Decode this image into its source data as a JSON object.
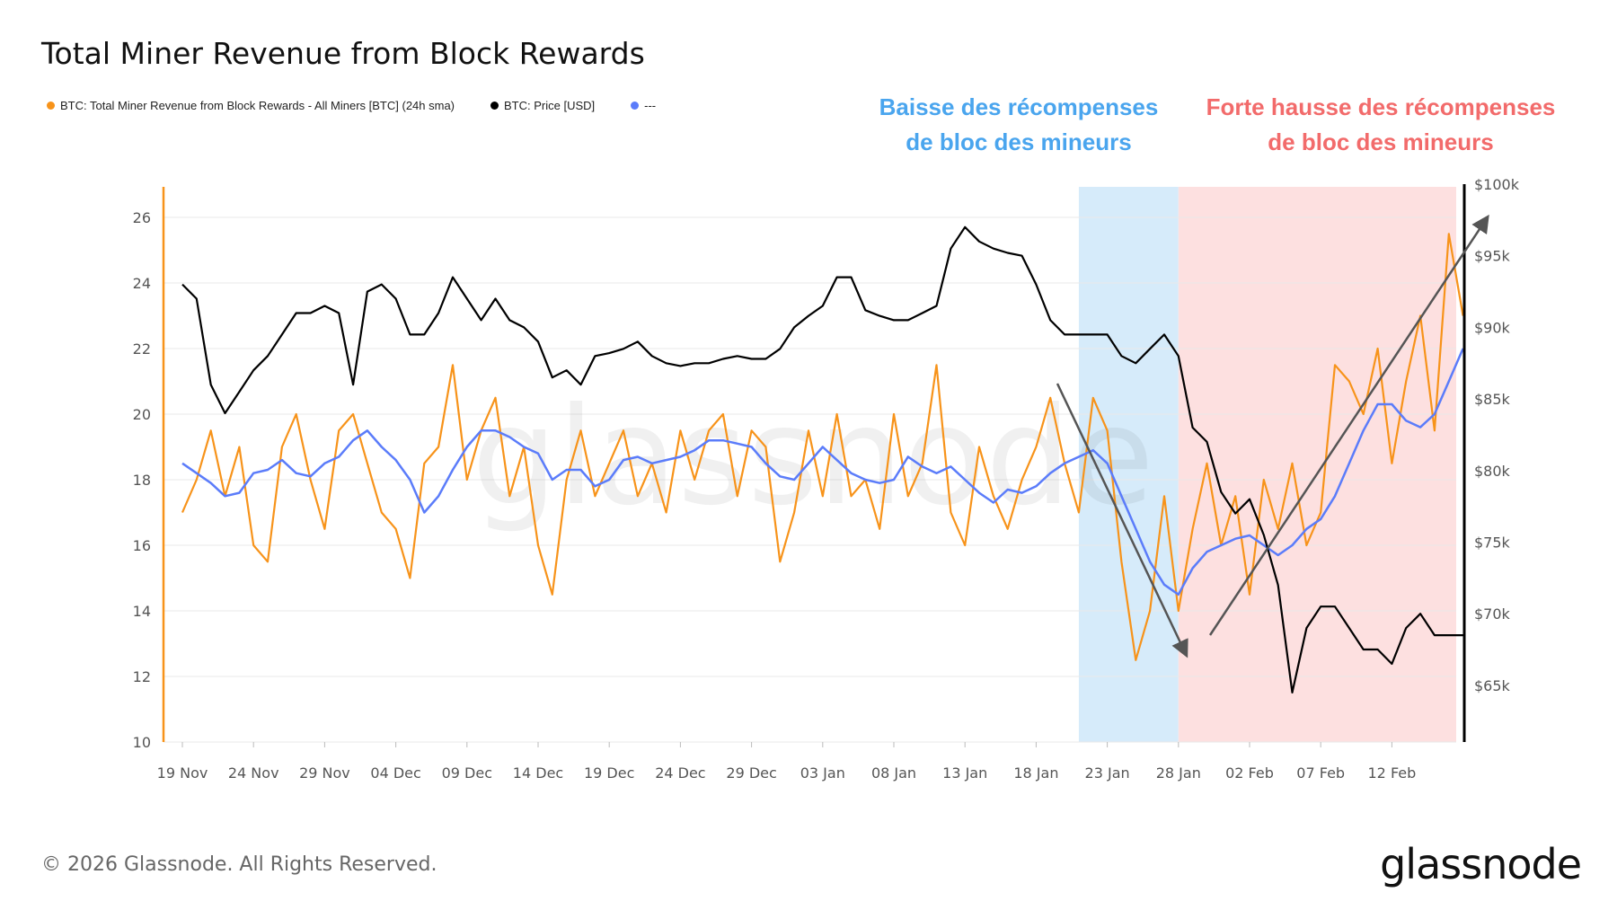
{
  "chart_data": {
    "type": "line",
    "title": "Total Miner Revenue from Block Rewards",
    "legend": [
      {
        "label": "BTC: Total Miner Revenue from Block Rewards - All Miners [BTC] (24h sma)",
        "color": "#f7931a"
      },
      {
        "label": "BTC: Price [USD]",
        "color": "#000000"
      },
      {
        "label": "---",
        "color": "#5b7cfa"
      }
    ],
    "legend_placement": "top-left",
    "x_start": "19 Nov",
    "x_end": "17 Feb",
    "x_tick_labels": [
      "19 Nov",
      "24 Nov",
      "29 Nov",
      "04 Dec",
      "09 Dec",
      "14 Dec",
      "19 Dec",
      "24 Dec",
      "29 Dec",
      "03 Jan",
      "08 Jan",
      "13 Jan",
      "18 Jan",
      "23 Jan",
      "28 Jan",
      "02 Feb",
      "07 Feb",
      "12 Feb"
    ],
    "y_left_ticks": [
      "10",
      "12",
      "14",
      "16",
      "18",
      "20",
      "22",
      "24",
      "26"
    ],
    "y_left_range": [
      10,
      27
    ],
    "y_right_ticks": [
      "$65k",
      "$70k",
      "$75k",
      "$80k",
      "$85k",
      "$90k",
      "$95k",
      "$100k"
    ],
    "y_right_range": [
      61,
      100
    ],
    "grid": true,
    "series": [
      {
        "name": "BTC: Total Miner Revenue from Block Rewards - All Miners [BTC] (24h sma)",
        "axis": "left",
        "color": "#f7931a",
        "values": [
          17,
          18,
          19.5,
          17.5,
          19,
          16,
          15.5,
          19,
          20,
          18,
          16.5,
          19.5,
          20,
          18.5,
          17,
          16.5,
          15,
          18.5,
          19,
          21.5,
          18,
          19.5,
          20.5,
          17.5,
          19,
          16,
          14.5,
          18,
          19.5,
          17.5,
          18.5,
          19.5,
          17.5,
          18.5,
          17,
          19.5,
          18,
          19.5,
          20,
          17.5,
          19.5,
          19,
          15.5,
          17,
          19.5,
          17.5,
          20,
          17.5,
          18,
          16.5,
          20,
          17.5,
          18.5,
          21.5,
          17,
          16,
          19,
          17.5,
          16.5,
          18,
          19,
          20.5,
          18.5,
          17,
          20.5,
          19.5,
          15.5,
          12.5,
          14,
          17.5,
          14,
          16.5,
          18.5,
          16,
          17.5,
          14.5,
          18,
          16.5,
          18.5,
          16,
          17,
          21.5,
          21,
          20,
          22,
          18.5,
          21,
          23,
          19.5,
          25.5,
          23
        ]
      },
      {
        "name": "BTC: Price [USD]",
        "axis": "right",
        "color": "#000000",
        "unit": "k USD",
        "values": [
          93,
          92,
          86,
          84,
          85.5,
          87,
          88,
          89.5,
          91,
          91,
          91.5,
          91,
          86,
          92.5,
          93,
          92,
          89.5,
          89.5,
          91,
          93.5,
          92,
          90.5,
          92,
          90.5,
          90,
          89,
          86.5,
          87,
          86,
          88,
          88.2,
          88.5,
          89,
          88,
          87.5,
          87.3,
          87.5,
          87.5,
          87.8,
          88,
          87.8,
          87.8,
          88.5,
          90,
          90.8,
          91.5,
          93.5,
          93.5,
          91.2,
          90.8,
          90.5,
          90.5,
          91,
          91.5,
          95.5,
          97,
          96,
          95.5,
          95.2,
          95,
          93,
          90.5,
          89.5,
          89.5,
          89.5,
          89.5,
          88,
          87.5,
          88.5,
          89.5,
          88,
          83,
          82,
          78.5,
          77,
          78,
          75.5,
          72,
          64.5,
          69,
          70.5,
          70.5,
          69,
          67.5,
          67.5,
          66.5,
          69,
          70,
          68.5,
          68.5,
          68.5
        ]
      },
      {
        "name": "---",
        "axis": "left",
        "color": "#5b7cfa",
        "values": [
          18.5,
          18.2,
          17.9,
          17.5,
          17.6,
          18.2,
          18.3,
          18.6,
          18.2,
          18.1,
          18.5,
          18.7,
          19.2,
          19.5,
          19,
          18.6,
          18,
          17,
          17.5,
          18.3,
          19,
          19.5,
          19.5,
          19.3,
          19,
          18.8,
          18,
          18.3,
          18.3,
          17.8,
          18,
          18.6,
          18.7,
          18.5,
          18.6,
          18.7,
          18.9,
          19.2,
          19.2,
          19.1,
          19,
          18.5,
          18.1,
          18,
          18.5,
          19,
          18.6,
          18.2,
          18,
          17.9,
          18,
          18.7,
          18.4,
          18.2,
          18.4,
          18,
          17.6,
          17.3,
          17.7,
          17.6,
          17.8,
          18.2,
          18.5,
          18.7,
          18.9,
          18.5,
          17.5,
          16.5,
          15.5,
          14.8,
          14.5,
          15.3,
          15.8,
          16,
          16.2,
          16.3,
          16,
          15.7,
          16,
          16.5,
          16.8,
          17.5,
          18.5,
          19.5,
          20.3,
          20.3,
          19.8,
          19.6,
          20,
          21,
          22
        ]
      }
    ],
    "highlight_bands": [
      {
        "from": "21 Jan",
        "to": "28 Jan",
        "color": "#d6ebfa"
      },
      {
        "from": "28 Jan",
        "to": "17 Feb",
        "color": "#fde0e0"
      }
    ],
    "annotations": {
      "decline": {
        "line1": "Baisse des récompenses",
        "line2": "de bloc des mineurs",
        "color": "#4aa5ee"
      },
      "rise": {
        "line1": "Forte hausse des récompenses",
        "line2": "de bloc des mineurs",
        "color": "#f26b6b"
      }
    },
    "watermark": "glassnode"
  },
  "footer": {
    "copyright": "© 2026 Glassnode. All Rights Reserved.",
    "logo": "glassnode"
  }
}
